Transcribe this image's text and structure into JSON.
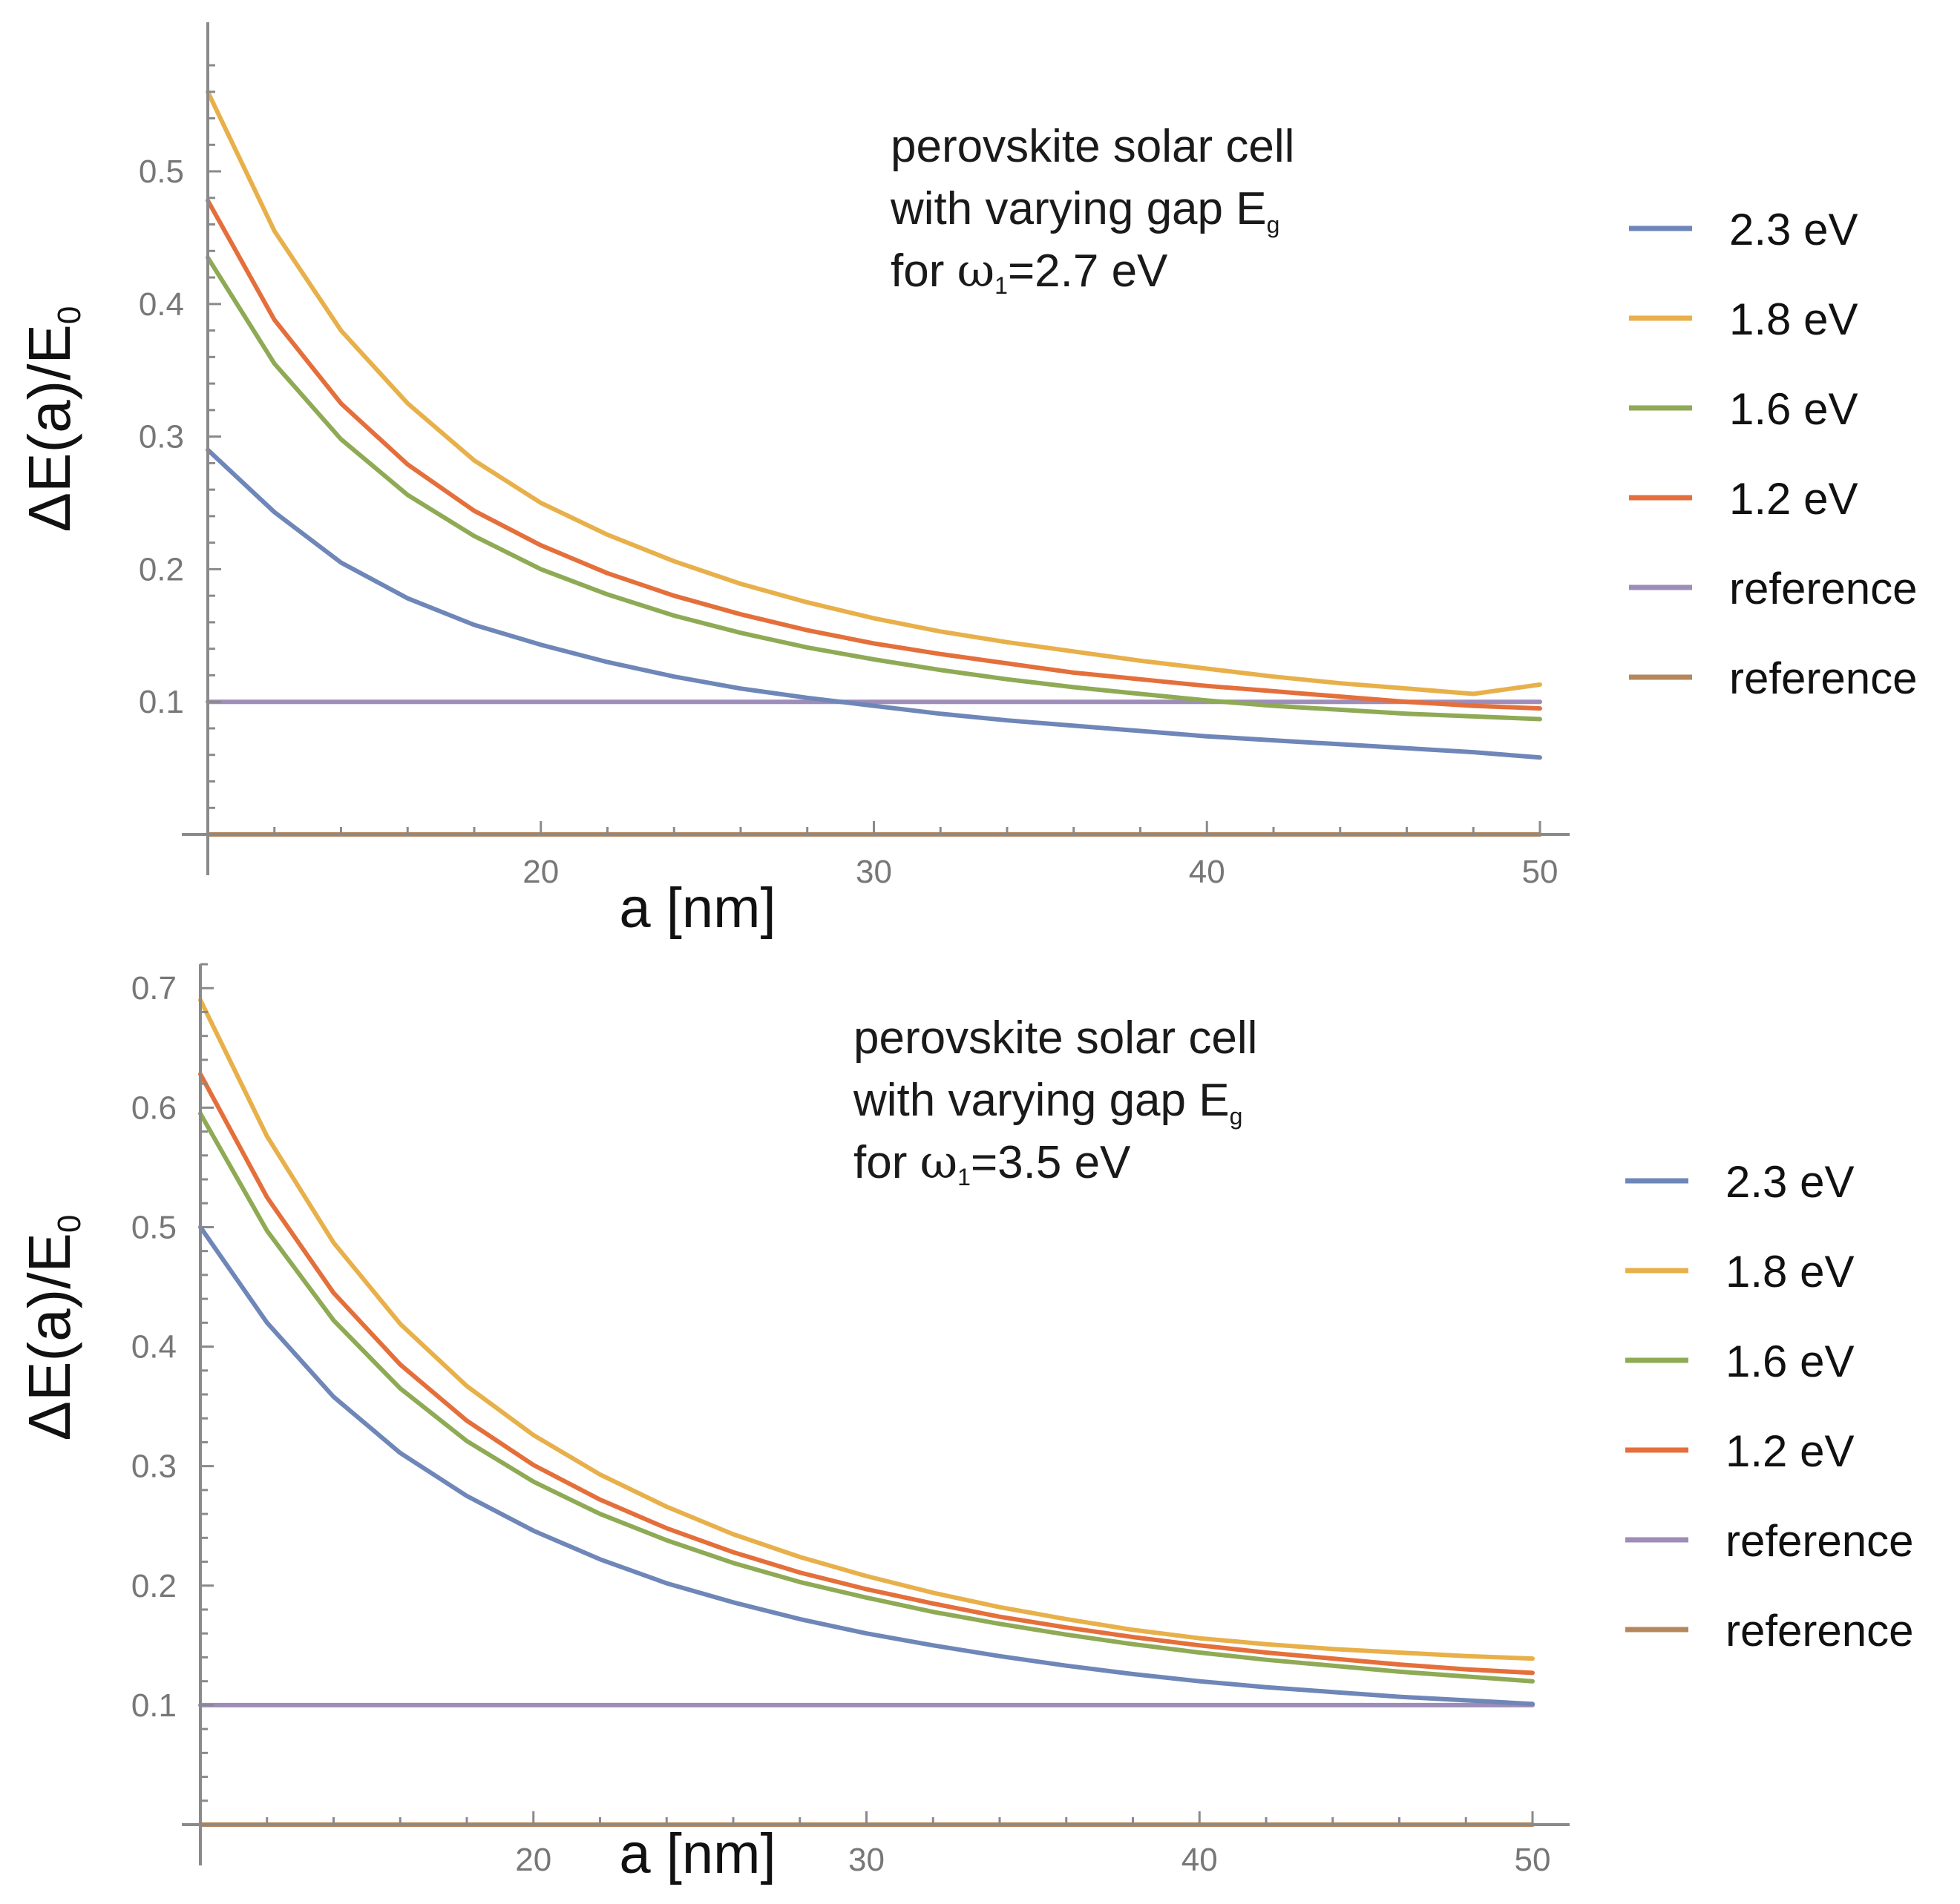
{
  "chart_data": [
    {
      "type": "line",
      "annotation": {
        "line1": "perovskite solar cell",
        "line2_main": "with varying gap E",
        "line2_sub": "g",
        "line3_pre": "for ",
        "line3_sym": "ω",
        "line3_sub": "1",
        "line3_post": "=2.7 eV"
      },
      "ylabel": {
        "delta": "Δ",
        "main": "E(a)/E",
        "sub": "0"
      },
      "xlabel": "a [nm]",
      "xlim": [
        10,
        50
      ],
      "ylim": [
        0,
        0.58
      ],
      "xticks": [
        20,
        30,
        40,
        50
      ],
      "xtick_labels": [
        "20",
        "30",
        "40",
        "50"
      ],
      "yticks": [
        0.1,
        0.2,
        0.3,
        0.4,
        0.5
      ],
      "ytick_labels": [
        "0.1",
        "0.2",
        "0.3",
        "0.4",
        "0.5"
      ],
      "legend_position": "right",
      "x": [
        10,
        12,
        14,
        16,
        18,
        20,
        22,
        24,
        26,
        28,
        30,
        32,
        34,
        36,
        38,
        40,
        42,
        44,
        46,
        48,
        50
      ],
      "series": [
        {
          "name": "2.3 eV",
          "color": "#6e86b8",
          "values": [
            0.29,
            0.243,
            0.205,
            0.178,
            0.158,
            0.143,
            0.13,
            0.119,
            0.11,
            0.103,
            0.097,
            0.091,
            0.086,
            0.082,
            0.078,
            0.074,
            0.071,
            0.068,
            0.065,
            0.062,
            0.058
          ]
        },
        {
          "name": "1.8 eV",
          "color": "#e8b04a",
          "values": [
            0.56,
            0.455,
            0.38,
            0.325,
            0.282,
            0.25,
            0.226,
            0.206,
            0.189,
            0.175,
            0.163,
            0.153,
            0.145,
            0.138,
            0.131,
            0.125,
            0.119,
            0.114,
            0.11,
            0.106,
            0.113
          ]
        },
        {
          "name": "1.6 eV",
          "color": "#8faa55",
          "values": [
            0.435,
            0.355,
            0.298,
            0.256,
            0.225,
            0.2,
            0.181,
            0.165,
            0.152,
            0.141,
            0.132,
            0.124,
            0.117,
            0.111,
            0.106,
            0.101,
            0.097,
            0.094,
            0.091,
            0.089,
            0.087
          ]
        },
        {
          "name": "1.2 eV",
          "color": "#e46f3b",
          "values": [
            0.478,
            0.388,
            0.325,
            0.279,
            0.244,
            0.218,
            0.197,
            0.18,
            0.166,
            0.154,
            0.144,
            0.136,
            0.129,
            0.122,
            0.117,
            0.112,
            0.108,
            0.104,
            0.1,
            0.097,
            0.095
          ]
        },
        {
          "name": "reference",
          "color": "#9d8db8",
          "values": [
            0.1,
            0.1,
            0.1,
            0.1,
            0.1,
            0.1,
            0.1,
            0.1,
            0.1,
            0.1,
            0.1,
            0.1,
            0.1,
            0.1,
            0.1,
            0.1,
            0.1,
            0.1,
            0.1,
            0.1,
            0.1
          ]
        },
        {
          "name": "reference",
          "color": "#b5875a",
          "values": [
            0,
            0,
            0,
            0,
            0,
            0,
            0,
            0,
            0,
            0,
            0,
            0,
            0,
            0,
            0,
            0,
            0,
            0,
            0,
            0,
            0
          ]
        }
      ]
    },
    {
      "type": "line",
      "annotation": {
        "line1": "perovskite solar cell",
        "line2_main": "with varying gap E",
        "line2_sub": "g",
        "line3_pre": "for ",
        "line3_sym": "ω",
        "line3_sub": "1",
        "line3_post": "=3.5 eV"
      },
      "ylabel": {
        "delta": "Δ",
        "main": "E(a)/E",
        "sub": "0"
      },
      "xlabel": "a [nm]",
      "xlim": [
        10,
        50
      ],
      "ylim": [
        0,
        0.72
      ],
      "xticks": [
        20,
        30,
        40,
        50
      ],
      "xtick_labels": [
        "20",
        "30",
        "40",
        "50"
      ],
      "yticks": [
        0.1,
        0.2,
        0.3,
        0.4,
        0.5,
        0.6,
        0.7
      ],
      "ytick_labels": [
        "0.1",
        "0.2",
        "0.3",
        "0.4",
        "0.5",
        "0.6",
        "0.7"
      ],
      "legend_position": "right",
      "x": [
        10,
        12,
        14,
        16,
        18,
        20,
        22,
        24,
        26,
        28,
        30,
        32,
        34,
        36,
        38,
        40,
        42,
        44,
        46,
        48,
        50
      ],
      "series": [
        {
          "name": "2.3 eV",
          "color": "#6e86b8",
          "values": [
            0.5,
            0.42,
            0.358,
            0.311,
            0.275,
            0.246,
            0.222,
            0.202,
            0.186,
            0.172,
            0.16,
            0.15,
            0.141,
            0.133,
            0.126,
            0.12,
            0.115,
            0.111,
            0.107,
            0.104,
            0.101
          ]
        },
        {
          "name": "1.8 eV",
          "color": "#e8b04a",
          "values": [
            0.69,
            0.576,
            0.487,
            0.419,
            0.367,
            0.326,
            0.293,
            0.266,
            0.243,
            0.224,
            0.208,
            0.194,
            0.182,
            0.172,
            0.163,
            0.156,
            0.151,
            0.147,
            0.144,
            0.141,
            0.139
          ]
        },
        {
          "name": "1.6 eV",
          "color": "#8faa55",
          "values": [
            0.595,
            0.497,
            0.422,
            0.365,
            0.321,
            0.287,
            0.26,
            0.238,
            0.219,
            0.203,
            0.19,
            0.178,
            0.168,
            0.159,
            0.151,
            0.144,
            0.138,
            0.133,
            0.128,
            0.124,
            0.12
          ]
        },
        {
          "name": "1.2 eV",
          "color": "#e46f3b",
          "values": [
            0.628,
            0.525,
            0.445,
            0.385,
            0.338,
            0.301,
            0.272,
            0.248,
            0.228,
            0.211,
            0.197,
            0.185,
            0.174,
            0.165,
            0.157,
            0.15,
            0.144,
            0.139,
            0.134,
            0.13,
            0.127
          ]
        },
        {
          "name": "reference",
          "color": "#9d8db8",
          "values": [
            0.1,
            0.1,
            0.1,
            0.1,
            0.1,
            0.1,
            0.1,
            0.1,
            0.1,
            0.1,
            0.1,
            0.1,
            0.1,
            0.1,
            0.1,
            0.1,
            0.1,
            0.1,
            0.1,
            0.1,
            0.1
          ]
        },
        {
          "name": "reference",
          "color": "#b5875a",
          "values": [
            0,
            0,
            0,
            0,
            0,
            0,
            0,
            0,
            0,
            0,
            0,
            0,
            0,
            0,
            0,
            0,
            0,
            0,
            0,
            0,
            0
          ]
        }
      ]
    }
  ]
}
